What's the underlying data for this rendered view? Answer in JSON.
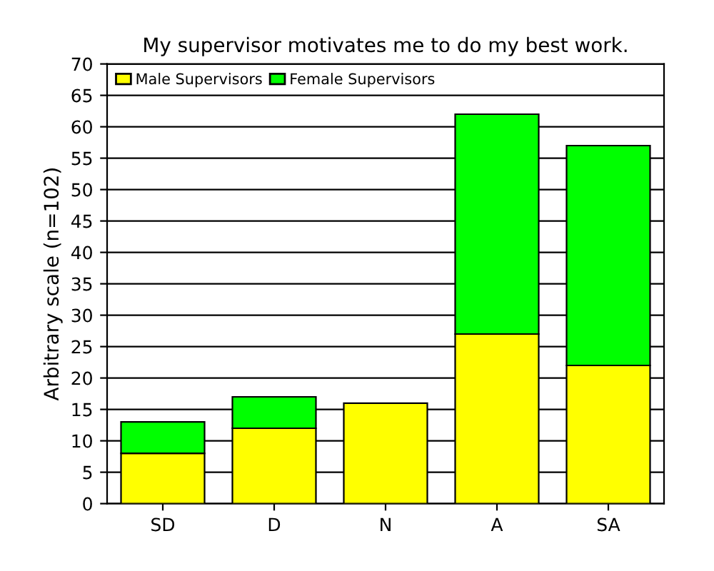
{
  "chart_data": {
    "type": "bar",
    "title": "My supervisor motivates me to do my best work.",
    "ylabel": "Arbitrary scale (n=102)",
    "categories": [
      "SD",
      "D",
      "N",
      "A",
      "SA"
    ],
    "series": [
      {
        "name": "Male Supervisors",
        "color": "#ffff00",
        "values": [
          8,
          12,
          16,
          27,
          22
        ]
      },
      {
        "name": "Female Supervisors",
        "color": "#00ff00",
        "values": [
          5,
          5,
          null,
          35,
          35
        ]
      }
    ],
    "stacked": true,
    "ylim": [
      0,
      70
    ],
    "yticks": [
      0,
      5,
      10,
      15,
      20,
      25,
      30,
      35,
      40,
      45,
      50,
      55,
      60,
      65,
      70
    ],
    "grid": "y",
    "legend": "top left"
  }
}
